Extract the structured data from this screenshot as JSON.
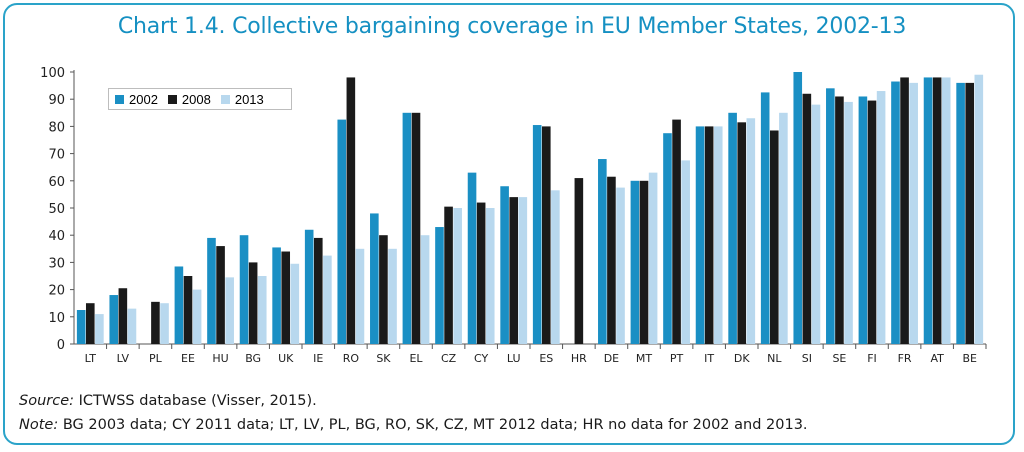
{
  "title": "Chart 1.4. Collective bargaining coverage in EU Member States, 2002-13",
  "source_label": "Source:",
  "source_text": " ICTWSS database (Visser, 2015).",
  "note_label": "Note:",
  "note_text": " BG 2003 data; CY 2011 data; LT, LV, PL, BG, RO, SK, CZ, MT 2012 data; HR no data for 2002 and 2013.",
  "colors": {
    "2002": "#1a8fc4",
    "2008": "#1a1a1a",
    "2013": "#b8d8ee",
    "axis": "#555555",
    "frame": "#2aa3c9"
  },
  "chart_data": {
    "type": "bar",
    "title": "Chart 1.4. Collective bargaining coverage in EU Member States, 2002-13",
    "xlabel": "",
    "ylabel": "",
    "ylim": [
      0,
      100
    ],
    "yticks": [
      0,
      10,
      20,
      30,
      40,
      50,
      60,
      70,
      80,
      90,
      100
    ],
    "legend_position": "top-left",
    "grid": false,
    "categories": [
      "LT",
      "LV",
      "PL",
      "EE",
      "HU",
      "BG",
      "UK",
      "IE",
      "RO",
      "SK",
      "EL",
      "CZ",
      "CY",
      "LU",
      "ES",
      "HR",
      "DE",
      "MT",
      "PT",
      "IT",
      "DK",
      "NL",
      "SI",
      "SE",
      "FI",
      "FR",
      "AT",
      "BE"
    ],
    "series": [
      {
        "name": "2002",
        "values": [
          12.5,
          18,
          null,
          28.5,
          39,
          40,
          35.5,
          42,
          82.5,
          48,
          85,
          43,
          63,
          58,
          80.5,
          null,
          68,
          60,
          77.5,
          80,
          85,
          92.5,
          100,
          94,
          91,
          96.5,
          98,
          96
        ]
      },
      {
        "name": "2008",
        "values": [
          15,
          20.5,
          15.5,
          25,
          36,
          30,
          34,
          39,
          98,
          40,
          85,
          50.5,
          52,
          54,
          80,
          61,
          61.5,
          60,
          82.5,
          80,
          81.5,
          78.5,
          92,
          91,
          89.5,
          98,
          98,
          96
        ]
      },
      {
        "name": "2013",
        "values": [
          11,
          13,
          15,
          20,
          24.5,
          25,
          29.5,
          32.5,
          35,
          35,
          40,
          50,
          50,
          54,
          56.5,
          null,
          57.5,
          63,
          67.5,
          80,
          83,
          85,
          88,
          89,
          93,
          96,
          98,
          99
        ]
      }
    ]
  }
}
